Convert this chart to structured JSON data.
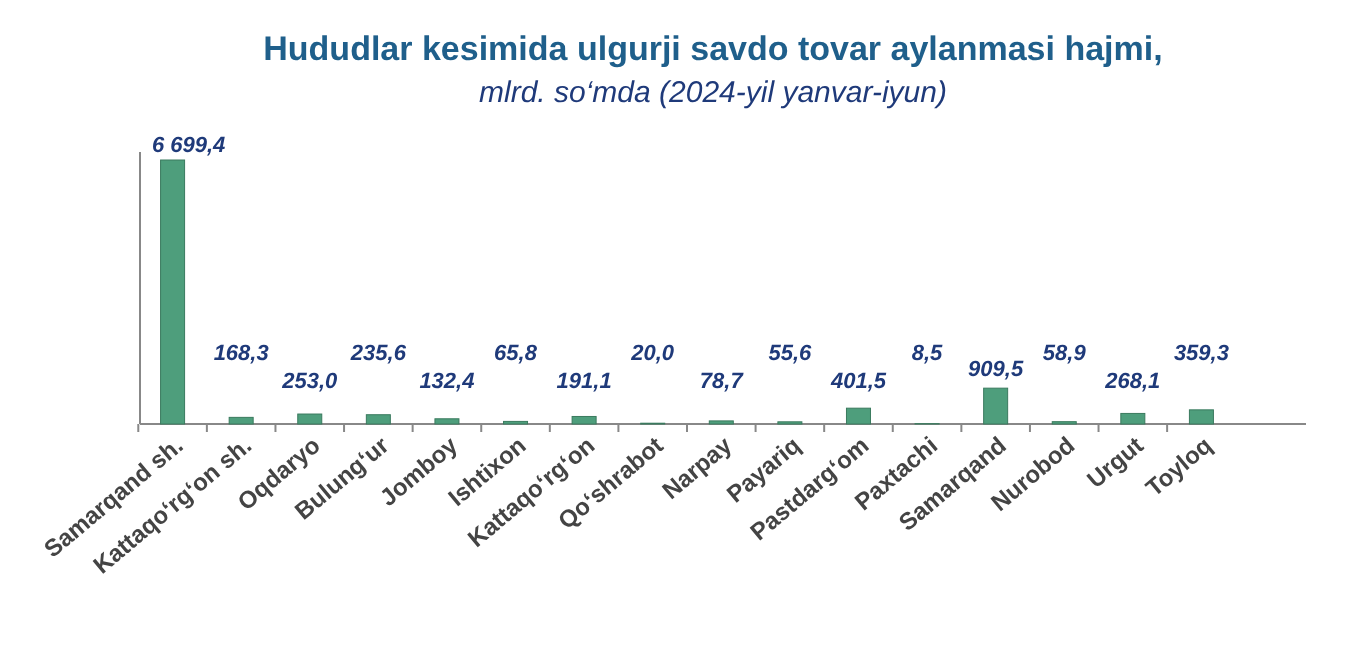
{
  "chart_data": {
    "type": "bar",
    "title": "Hududlar kesimida ulgurji savdo tovar aylanmasi  hajmi,",
    "subtitle": "mlrd. so‘mda  (2024-yil yanvar-iyun)",
    "categories": [
      "Samarqand sh.",
      "Kattaqo‘rg‘on sh.",
      "Oqdaryo",
      "Bulung‘ur",
      "Jomboy",
      "Ishtixon",
      "Kattaqo‘rg‘on",
      "Qo‘shrabot",
      "Narpay",
      "Payariq",
      "Pastdarg‘om",
      "Paxtachi",
      "Samarqand",
      "Nurobod",
      "Urgut",
      "Toyloq"
    ],
    "values": [
      6699.4,
      168.3,
      253.0,
      235.6,
      132.4,
      65.8,
      191.1,
      20.0,
      78.7,
      55.6,
      401.5,
      8.5,
      909.5,
      58.9,
      268.1,
      359.3
    ],
    "value_labels": [
      "6 699,4",
      "168,3",
      "253,0",
      "235,6",
      "132,4",
      "65,8",
      "191,1",
      "20,0",
      "78,7",
      "55,6",
      "401,5",
      "8,5",
      "909,5",
      "58,9",
      "268,1",
      "359,3"
    ],
    "color": "#4e9e7c",
    "tick_labels": "x"
  }
}
